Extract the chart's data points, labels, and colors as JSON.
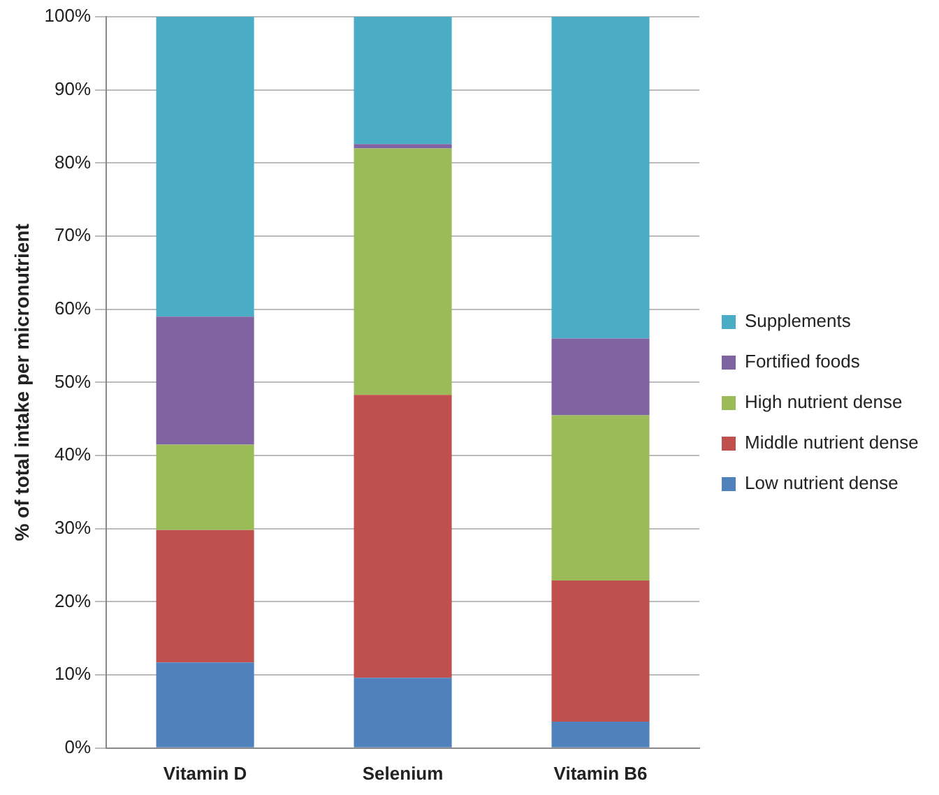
{
  "chart_data": {
    "type": "bar",
    "stacked": true,
    "ylabel": "% of total intake per micronutrient",
    "categories": [
      "Vitamin D",
      "Selenium",
      "Vitamin B6"
    ],
    "series": [
      {
        "name": "Low nutrient dense",
        "color": "#4f81bd",
        "values": [
          11.7,
          9.6,
          3.6
        ]
      },
      {
        "name": "Middle nutrient dense",
        "color": "#c0504d",
        "values": [
          18.1,
          38.7,
          19.3
        ]
      },
      {
        "name": "High nutrient dense",
        "color": "#9bbb59",
        "values": [
          11.7,
          33.7,
          22.6
        ]
      },
      {
        "name": "Fortified foods",
        "color": "#8064a2",
        "values": [
          17.5,
          0.6,
          10.5
        ]
      },
      {
        "name": "Supplements",
        "color": "#4bacc6",
        "values": [
          41,
          17.4,
          44
        ]
      }
    ],
    "ylim": [
      0,
      100
    ],
    "yticks": [
      {
        "value": 0,
        "label": "0%"
      },
      {
        "value": 10,
        "label": "10%"
      },
      {
        "value": 20,
        "label": "20%"
      },
      {
        "value": 30,
        "label": "30%"
      },
      {
        "value": 40,
        "label": "40%"
      },
      {
        "value": 50,
        "label": "50%"
      },
      {
        "value": 60,
        "label": "60%"
      },
      {
        "value": 70,
        "label": "70%"
      },
      {
        "value": 80,
        "label": "80%"
      },
      {
        "value": 90,
        "label": "90%"
      },
      {
        "value": 100,
        "label": "100%"
      }
    ],
    "grid": "y",
    "legend": "right"
  }
}
